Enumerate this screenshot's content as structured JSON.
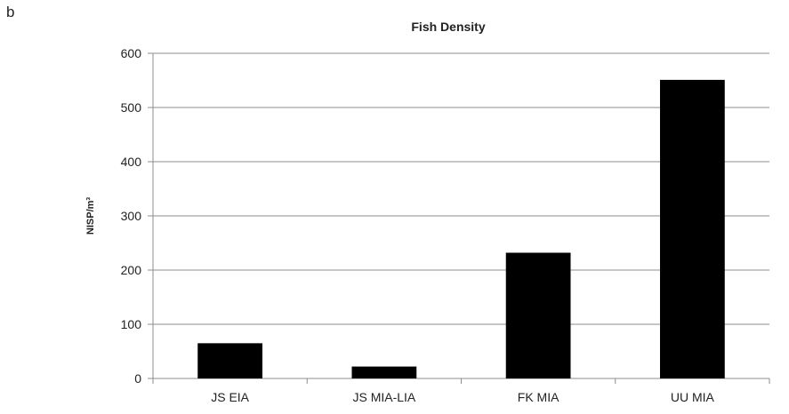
{
  "panel_label": "b",
  "chart_data": {
    "type": "bar",
    "title": "Fish Density",
    "xlabel": "",
    "ylabel": "NISP/m³",
    "categories": [
      "JS EIA",
      "JS MIA-LIA",
      "FK MIA",
      "UU MIA"
    ],
    "values": [
      65,
      22,
      232,
      551
    ],
    "ylim": [
      0,
      600
    ],
    "yticks": [
      0,
      100,
      200,
      300,
      400,
      500,
      600
    ],
    "grid": true,
    "legend": "none",
    "bar_color": "#000000",
    "grid_color": "#8c8c8c"
  }
}
